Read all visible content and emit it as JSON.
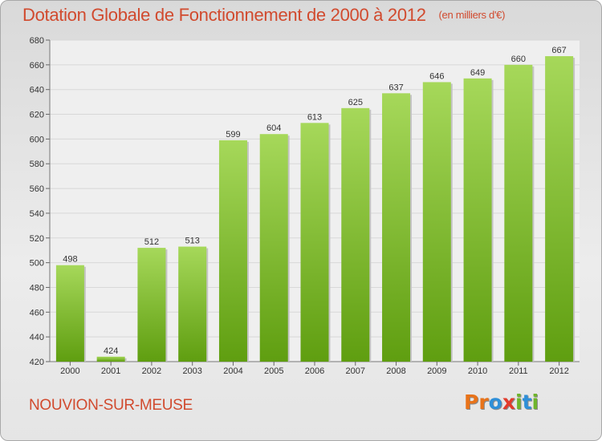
{
  "title": "Dotation Globale de Fonctionnement de 2000 à 2012",
  "unit_label": "(en milliers d'€)",
  "footer": {
    "commune": "NOUVION-SUR-MEUSE"
  },
  "logo": {
    "text": "Proxiti",
    "letters": [
      {
        "ch": "P",
        "color": "#e8731a"
      },
      {
        "ch": "r",
        "color": "#e8731a"
      },
      {
        "ch": "o",
        "color": "#2f8fd8"
      },
      {
        "ch": "x",
        "color": "#e23b2c"
      },
      {
        "ch": "i",
        "color": "#6fb52c"
      },
      {
        "ch": "t",
        "color": "#2f8fd8"
      },
      {
        "ch": "i",
        "color": "#6fb52c"
      }
    ]
  },
  "colors": {
    "title": "#d14a2e",
    "bar_top": "#a6d85a",
    "bar_bottom": "#5f9e10",
    "plot_bg": "#efefef",
    "grid": "#d8d8d8"
  },
  "chart_data": {
    "type": "bar",
    "categories": [
      "2000",
      "2001",
      "2002",
      "2003",
      "2004",
      "2005",
      "2006",
      "2007",
      "2008",
      "2009",
      "2010",
      "2011",
      "2012"
    ],
    "values": [
      498,
      424,
      512,
      513,
      599,
      604,
      613,
      625,
      637,
      646,
      649,
      660,
      667
    ],
    "ylim": [
      420,
      680
    ],
    "yticks": [
      420,
      440,
      460,
      480,
      500,
      520,
      540,
      560,
      580,
      600,
      620,
      640,
      660,
      680
    ],
    "grid": true,
    "legend": "none"
  }
}
